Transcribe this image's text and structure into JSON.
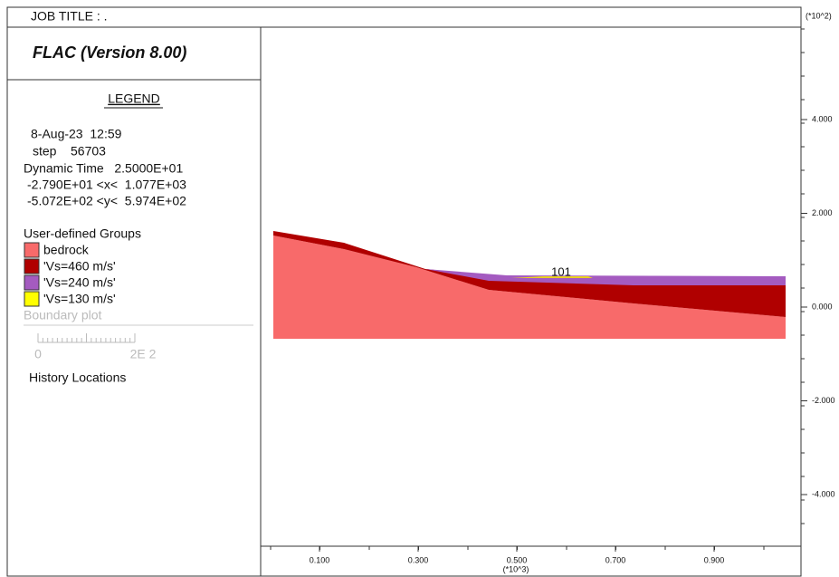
{
  "header": {
    "job_title": "JOB TITLE : ."
  },
  "program": "FLAC (Version 8.00)",
  "legend": {
    "title": "LEGEND",
    "date": "8-Aug-23  12:59",
    "step": "step    56703",
    "dynamic_time": "Dynamic Time   2.5000E+01",
    "x_range": "-2.790E+01 <x<  1.077E+03",
    "y_range": "-5.072E+02 <y<  5.974E+02",
    "groups_title": "User-defined Groups",
    "groups": [
      "bedrock",
      "'Vs=460 m/s'",
      "'Vs=240 m/s'",
      "'Vs=130 m/s'"
    ],
    "boundary_title": "Boundary plot",
    "scale_labels": [
      "0",
      "2E 2"
    ],
    "history_title": "History Locations"
  },
  "plot": {
    "history_label": "101",
    "y_multiplier": "(*10^2)",
    "y_tick_labels": [
      "4.000",
      "2.000",
      "0.000",
      "-2.000",
      "-4.000"
    ],
    "x_tick_labels": [
      "0.100",
      "0.300",
      "0.500",
      "0.700",
      "0.900"
    ],
    "x_multiplier": "(*10^3)"
  }
}
